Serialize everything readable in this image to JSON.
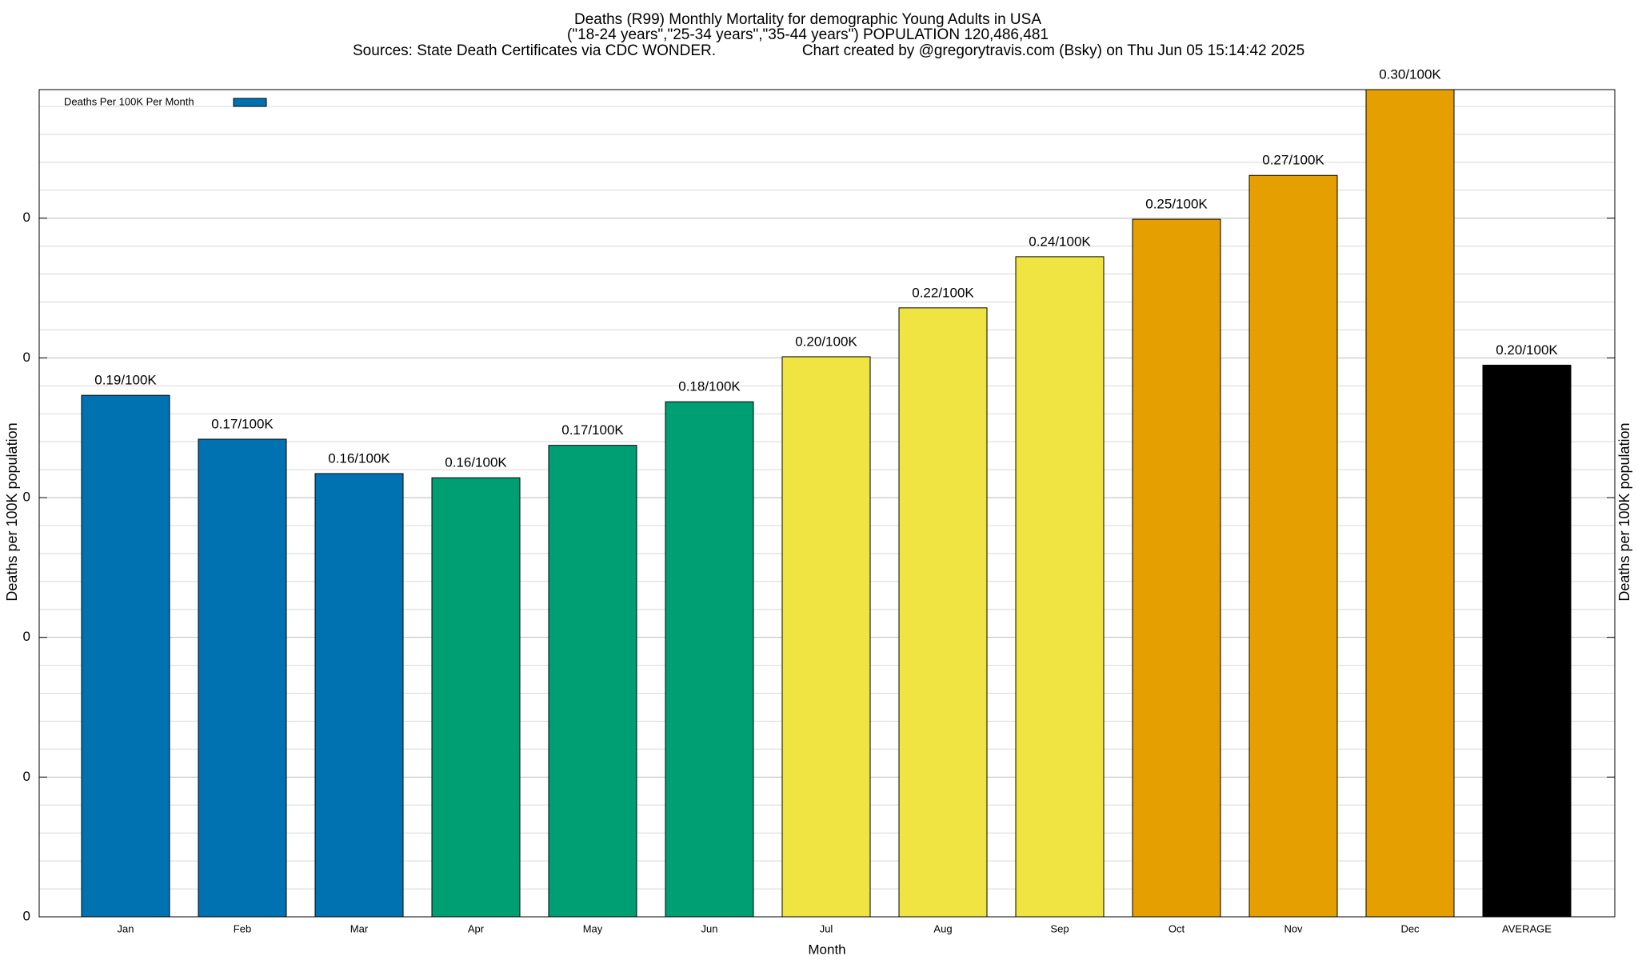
{
  "chart_data": {
    "type": "bar",
    "title": "Deaths (R99) Monthly Mortality for demographic Young Adults in USA",
    "subtitle": "(\"18-24 years\",\"25-34 years\",\"35-44 years\") POPULATION 120,486,481",
    "source": "Sources: State Death Certificates via CDC WONDER.",
    "credit": "Chart created by @gregorytravis.com (Bsky) on Thu Jun 05 15:14:42 2025",
    "x_label": "Month",
    "y_label": "Deaths per 100K population",
    "categories": [
      "Jan",
      "Feb",
      "Mar",
      "Apr",
      "May",
      "Jun",
      "Jul",
      "Aug",
      "Sep",
      "Oct",
      "Nov",
      "Dec",
      "AVERAGE"
    ],
    "series": [
      {
        "name": "Deaths Per 100K Per Month",
        "color": "#0072b2",
        "values": [
          0.1866,
          0.1709,
          0.1586,
          0.1571,
          0.1687,
          0.1843,
          0.2004,
          0.2179,
          0.2362,
          0.2496,
          0.2653,
          0.296,
          0.1974
        ],
        "value_labels": [
          "0.19/100K",
          "0.17/100K",
          "0.16/100K",
          "0.16/100K",
          "0.17/100K",
          "0.18/100K",
          "0.20/100K",
          "0.22/100K",
          "0.24/100K",
          "0.25/100K",
          "0.27/100K",
          "0.30/100K",
          "0.20/100K"
        ],
        "colors": [
          "#0072b2",
          "#0072b2",
          "#0072b2",
          "#009e73",
          "#009e73",
          "#009e73",
          "#f0e442",
          "#f0e442",
          "#f0e442",
          "#e69f00",
          "#e69f00",
          "#e69f00",
          "#000000"
        ]
      }
    ],
    "ylim": [
      0,
      0.296
    ],
    "yticks": [
      0,
      {
        "value": 0.05,
        "label": "0"
      },
      {
        "value": 0.1,
        "label": "0"
      },
      {
        "value": 0.15,
        "label": "0"
      },
      {
        "value": 0.2,
        "label": "0"
      },
      {
        "value": 0.25,
        "label": "0"
      }
    ],
    "minor_yticks": [
      0.01,
      0.02,
      0.03,
      0.04,
      0.06,
      0.07,
      0.08,
      0.09,
      0.11,
      0.12,
      0.13,
      0.14,
      0.16,
      0.17,
      0.18,
      0.19,
      0.21,
      0.22,
      0.23,
      0.24,
      0.26,
      0.27,
      0.28,
      0.29
    ],
    "grid": true,
    "legend": "top-left"
  }
}
